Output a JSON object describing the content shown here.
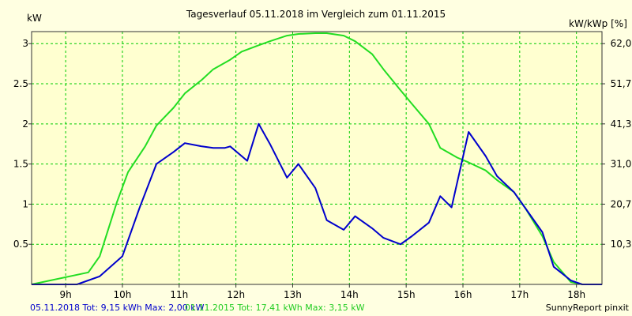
{
  "chart_data": {
    "type": "line",
    "title": "Tagesverlauf 05.11.2018 im Vergleich zum 01.11.2015",
    "left_axis_label": "kW",
    "right_axis_label": "kW/kWp [%]",
    "x_ticks": [
      "9h",
      "10h",
      "11h",
      "12h",
      "13h",
      "14h",
      "15h",
      "16h",
      "17h",
      "18h"
    ],
    "x_range_hours": [
      8.4,
      18.45
    ],
    "y_left_ticks": [
      "0.5",
      "1",
      "1.5",
      "2",
      "2.5",
      "3"
    ],
    "y_left_range": [
      0,
      3.15
    ],
    "y_right_ticks": [
      "10,3",
      "20,7",
      "31,0",
      "41,3",
      "51,7",
      "62,0"
    ],
    "grid": true,
    "series": [
      {
        "name": "05.11.2018",
        "color": "#0000cc",
        "points": [
          [
            8.4,
            0.0
          ],
          [
            9.2,
            0.0
          ],
          [
            9.6,
            0.1
          ],
          [
            10.0,
            0.35
          ],
          [
            10.3,
            0.95
          ],
          [
            10.6,
            1.5
          ],
          [
            10.9,
            1.65
          ],
          [
            11.1,
            1.76
          ],
          [
            11.4,
            1.72
          ],
          [
            11.6,
            1.7
          ],
          [
            11.8,
            1.7
          ],
          [
            11.9,
            1.72
          ],
          [
            12.2,
            1.54
          ],
          [
            12.4,
            2.0
          ],
          [
            12.6,
            1.75
          ],
          [
            12.9,
            1.33
          ],
          [
            13.1,
            1.5
          ],
          [
            13.4,
            1.2
          ],
          [
            13.6,
            0.8
          ],
          [
            13.9,
            0.68
          ],
          [
            14.1,
            0.85
          ],
          [
            14.4,
            0.7
          ],
          [
            14.6,
            0.58
          ],
          [
            14.9,
            0.5
          ],
          [
            15.1,
            0.6
          ],
          [
            15.4,
            0.77
          ],
          [
            15.6,
            1.1
          ],
          [
            15.8,
            0.96
          ],
          [
            16.1,
            1.9
          ],
          [
            16.4,
            1.6
          ],
          [
            16.6,
            1.35
          ],
          [
            16.9,
            1.15
          ],
          [
            17.1,
            0.95
          ],
          [
            17.4,
            0.65
          ],
          [
            17.6,
            0.22
          ],
          [
            17.9,
            0.05
          ],
          [
            18.1,
            0.0
          ],
          [
            18.45,
            0.0
          ]
        ]
      },
      {
        "name": "01.11.2015",
        "color": "#22dd22",
        "points": [
          [
            8.4,
            0.0
          ],
          [
            9.4,
            0.15
          ],
          [
            9.6,
            0.35
          ],
          [
            9.9,
            1.02
          ],
          [
            10.1,
            1.4
          ],
          [
            10.4,
            1.72
          ],
          [
            10.6,
            1.98
          ],
          [
            10.9,
            2.2
          ],
          [
            11.1,
            2.38
          ],
          [
            11.4,
            2.55
          ],
          [
            11.6,
            2.68
          ],
          [
            11.9,
            2.8
          ],
          [
            12.1,
            2.9
          ],
          [
            12.4,
            2.98
          ],
          [
            12.6,
            3.03
          ],
          [
            12.9,
            3.1
          ],
          [
            13.1,
            3.12
          ],
          [
            13.4,
            3.13
          ],
          [
            13.6,
            3.13
          ],
          [
            13.9,
            3.1
          ],
          [
            14.1,
            3.03
          ],
          [
            14.4,
            2.87
          ],
          [
            14.6,
            2.68
          ],
          [
            14.9,
            2.42
          ],
          [
            15.1,
            2.25
          ],
          [
            15.4,
            2.0
          ],
          [
            15.6,
            1.7
          ],
          [
            15.9,
            1.58
          ],
          [
            16.1,
            1.52
          ],
          [
            16.4,
            1.42
          ],
          [
            16.6,
            1.3
          ],
          [
            16.9,
            1.15
          ],
          [
            17.1,
            0.95
          ],
          [
            17.4,
            0.6
          ],
          [
            17.6,
            0.28
          ],
          [
            17.9,
            0.03
          ],
          [
            18.1,
            0.0
          ],
          [
            18.45,
            0.0
          ]
        ]
      }
    ]
  },
  "footer": {
    "series1_text": "05.11.2018 Tot: 9,15 kWh Max: 2,00 kW",
    "series2_text": "01.11.2015 Tot: 17,41 kWh Max: 3,15 kW",
    "credit": "SunnyReport pinxit"
  }
}
